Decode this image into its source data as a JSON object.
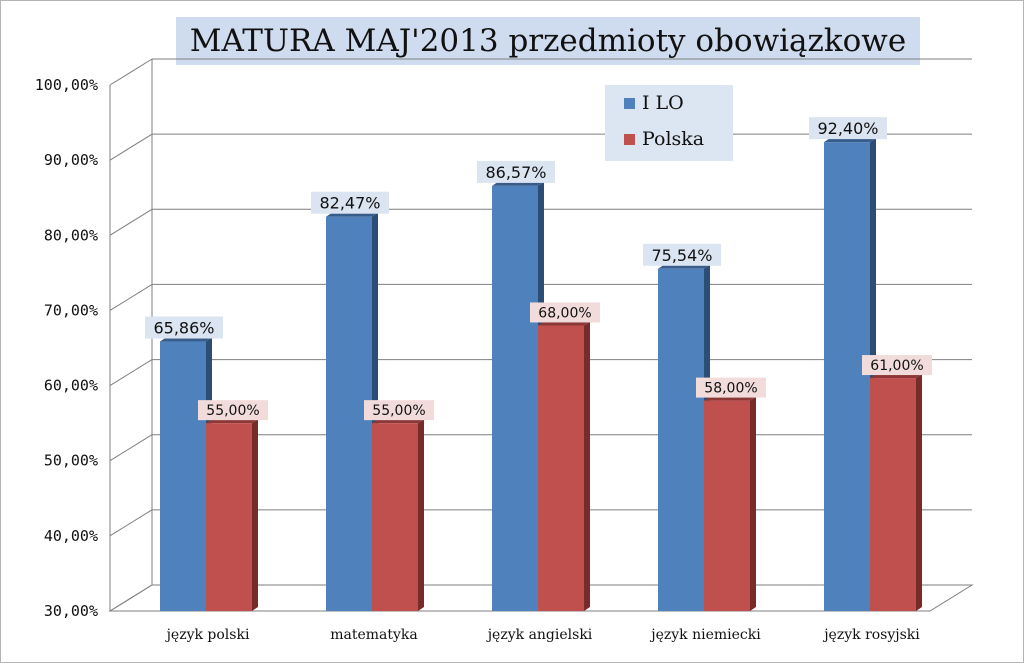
{
  "chart_data": {
    "type": "bar",
    "title": "MATURA MAJ'2013 przedmioty obowiązkowe",
    "categories": [
      "język polski",
      "matematyka",
      "język angielski",
      "język niemiecki",
      "język rosyjski"
    ],
    "series": [
      {
        "name": "I LO",
        "values": [
          65.86,
          82.47,
          86.57,
          75.54,
          92.4
        ],
        "labels": [
          "65,86%",
          "82,47%",
          "86,57%",
          "75,54%",
          "92,40%"
        ]
      },
      {
        "name": "Polska",
        "values": [
          55.0,
          55.0,
          68.0,
          58.0,
          61.0
        ],
        "labels": [
          "55,00%",
          "55,00%",
          "68,00%",
          "58,00%",
          "61,00%"
        ]
      }
    ],
    "ylim": [
      30,
      100
    ],
    "yticks": [
      30,
      40,
      50,
      60,
      70,
      80,
      90,
      100
    ],
    "ytick_labels": [
      "30,00%",
      "40,00%",
      "50,00%",
      "60,00%",
      "70,00%",
      "80,00%",
      "90,00%",
      "100,00%"
    ],
    "grid": true,
    "legend": "top-right",
    "style": "3d-column"
  },
  "colors": {
    "series_front": [
      "#4f81bd",
      "#c0504d"
    ],
    "series_side": [
      "#2c4d75",
      "#772c2a"
    ],
    "series_top": [
      "#385d8a",
      "#8c3836"
    ],
    "series_label_bg": [
      "#dbe4f1",
      "#f2dcdb"
    ],
    "title_bg": "#cfdcef",
    "legend_bg": "#dce6f2",
    "grid": "#7f7f7f"
  }
}
